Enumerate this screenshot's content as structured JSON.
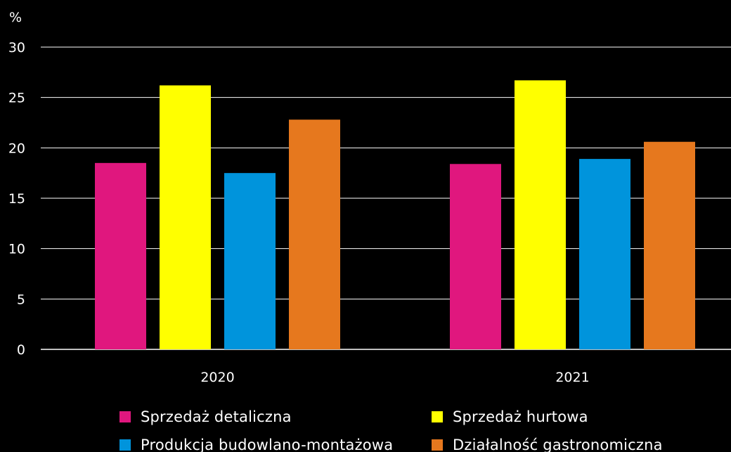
{
  "chart_data": {
    "type": "bar",
    "title": "",
    "xlabel": "",
    "ylabel": "%",
    "ylim": [
      0,
      30
    ],
    "yticks": [
      0,
      5,
      10,
      15,
      20,
      25,
      30
    ],
    "grid": true,
    "legend_position": "bottom",
    "categories": [
      "2020",
      "2021"
    ],
    "series": [
      {
        "name": "Sprzedaż detaliczna",
        "color": "#E0177E",
        "values": [
          18.5,
          18.4
        ]
      },
      {
        "name": "Sprzedaż hurtowa",
        "color": "#FFFF00",
        "values": [
          26.2,
          26.7
        ]
      },
      {
        "name": "Produkcja budowlano-montażowa",
        "color": "#0094DC",
        "values": [
          17.5,
          18.9
        ]
      },
      {
        "name": "Działalność gastronomiczna",
        "color": "#E6781E",
        "values": [
          22.8,
          20.6
        ]
      }
    ]
  },
  "colors": {
    "background": "#000000",
    "gridline": "#ffffff",
    "text": "#ffffff"
  }
}
